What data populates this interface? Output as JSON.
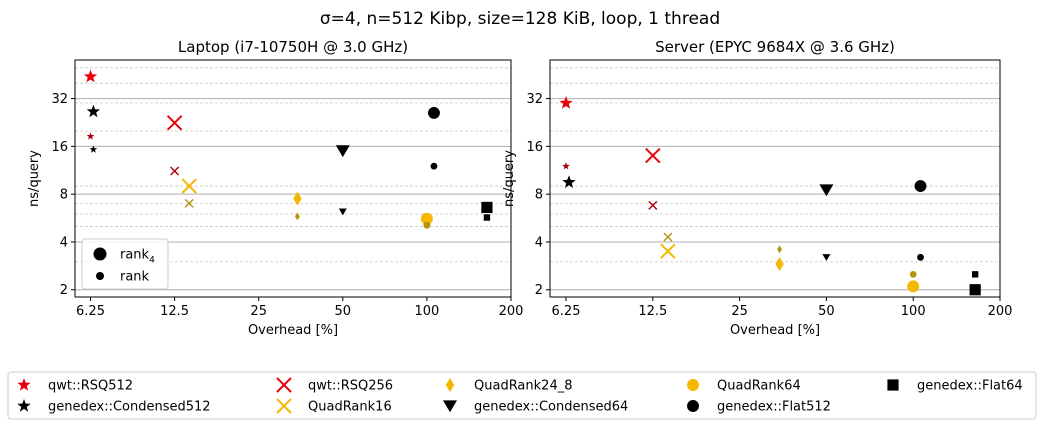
{
  "figure": {
    "suptitle": "σ=4, n=512 Kibp, size=128 KiB, loop, 1 thread"
  },
  "colors": {
    "red": "#e8000b",
    "darkred": "#a5000a",
    "yellow": "#f5b700",
    "darkyellow": "#b8910f",
    "black": "#000000",
    "grid_major": "#b0b0b0",
    "grid_minor": "#c8c8c8"
  },
  "chart_data": [
    {
      "type": "scatter",
      "title": "Laptop (i7-10750H @ 3.0 GHz)",
      "xlabel": "Overhead [%]",
      "ylabel": "ns/query",
      "xscale": "log",
      "yscale": "log",
      "xlim": [
        5.5,
        200
      ],
      "ylim": [
        1.8,
        56
      ],
      "xticks": [
        6.25,
        12.5,
        25,
        50,
        100,
        200
      ],
      "xtick_labels": [
        "6.25",
        "12.5",
        "25",
        "50",
        "100",
        "200"
      ],
      "yticks": [
        2,
        4,
        8,
        16,
        32
      ],
      "ytick_labels": [
        "2",
        "4",
        "8",
        "16",
        "32"
      ],
      "grid": "y major and minor",
      "legend": {
        "placement": "lower-left",
        "entries": [
          {
            "label_main": "rank",
            "label_sub": "4",
            "size": "large"
          },
          {
            "label_main": "rank",
            "label_sub": "",
            "size": "small"
          }
        ]
      },
      "series": [
        {
          "name": "qwt::RSQ512",
          "marker": "star",
          "color": "red",
          "rank4": [
            6.25,
            44
          ],
          "rank": [
            6.25,
            18.5
          ]
        },
        {
          "name": "genedex::Condensed512",
          "marker": "star",
          "color": "black",
          "rank4": [
            6.4,
            26.5
          ],
          "rank": [
            6.4,
            15.3
          ]
        },
        {
          "name": "qwt::RSQ256",
          "marker": "x",
          "color": "red",
          "rank4": [
            12.5,
            22.5
          ],
          "rank": [
            12.5,
            11.2
          ]
        },
        {
          "name": "QuadRank16",
          "marker": "x",
          "color": "yellow",
          "rank4": [
            14.1,
            9.0
          ],
          "rank": [
            14.1,
            7.0
          ]
        },
        {
          "name": "QuadRank24_8",
          "marker": "thin_diamond",
          "color": "yellow",
          "rank4": [
            34.4,
            7.5
          ],
          "rank": [
            34.4,
            5.8
          ]
        },
        {
          "name": "genedex::Condensed64",
          "marker": "triangle-down",
          "color": "black",
          "rank4": [
            50,
            15.0
          ],
          "rank": [
            50,
            6.2
          ]
        },
        {
          "name": "QuadRank64",
          "marker": "circle",
          "color": "yellow",
          "rank4": [
            100,
            5.6
          ],
          "rank": [
            100,
            5.1
          ]
        },
        {
          "name": "genedex::Flat512",
          "marker": "circle",
          "color": "black",
          "rank4": [
            106,
            26.0
          ],
          "rank": [
            106,
            12.0
          ]
        },
        {
          "name": "genedex::Flat64",
          "marker": "square",
          "color": "black",
          "rank4": [
            164,
            6.6
          ],
          "rank": [
            164,
            5.7
          ]
        }
      ]
    },
    {
      "type": "scatter",
      "title": "Server (EPYC 9684X @ 3.6 GHz)",
      "xlabel": "Overhead [%]",
      "ylabel": "ns/query",
      "xscale": "log",
      "yscale": "log",
      "xlim": [
        5.5,
        200
      ],
      "ylim": [
        1.8,
        56
      ],
      "xticks": [
        6.25,
        12.5,
        25,
        50,
        100,
        200
      ],
      "xtick_labels": [
        "6.25",
        "12.5",
        "25",
        "50",
        "100",
        "200"
      ],
      "yticks": [
        2,
        4,
        8,
        16,
        32
      ],
      "ytick_labels": [
        "2",
        "4",
        "8",
        "16",
        "32"
      ],
      "grid": "y major and minor",
      "series": [
        {
          "name": "qwt::RSQ512",
          "marker": "star",
          "color": "red",
          "rank4": [
            6.25,
            30.0
          ],
          "rank": [
            6.25,
            12.0
          ]
        },
        {
          "name": "genedex::Condensed512",
          "marker": "star",
          "color": "black",
          "rank4": [
            6.4,
            9.5
          ],
          "rank": [
            6.4,
            9.5
          ]
        },
        {
          "name": "qwt::RSQ256",
          "marker": "x",
          "color": "red",
          "rank4": [
            12.5,
            14.0
          ],
          "rank": [
            12.5,
            6.8
          ]
        },
        {
          "name": "QuadRank16",
          "marker": "x",
          "color": "yellow",
          "rank4": [
            14.1,
            3.5
          ],
          "rank": [
            14.1,
            4.3
          ]
        },
        {
          "name": "QuadRank24_8",
          "marker": "thin_diamond",
          "color": "yellow",
          "rank4": [
            34.4,
            2.9
          ],
          "rank": [
            34.4,
            3.6
          ]
        },
        {
          "name": "genedex::Condensed64",
          "marker": "triangle-down",
          "color": "black",
          "rank4": [
            50,
            8.5
          ],
          "rank": [
            50,
            3.2
          ]
        },
        {
          "name": "QuadRank64",
          "marker": "circle",
          "color": "yellow",
          "rank4": [
            100,
            2.1
          ],
          "rank": [
            100,
            2.5
          ]
        },
        {
          "name": "genedex::Flat512",
          "marker": "circle",
          "color": "black",
          "rank4": [
            106,
            9.0
          ],
          "rank": [
            106,
            3.2
          ]
        },
        {
          "name": "genedex::Flat64",
          "marker": "square",
          "color": "black",
          "rank4": [
            164,
            2.0
          ],
          "rank": [
            164,
            2.5
          ]
        }
      ]
    }
  ],
  "legend": {
    "placement": "bottom",
    "columns": [
      [
        "qwt::RSQ512",
        "genedex::Condensed512"
      ],
      [
        "qwt::RSQ256",
        "QuadRank16"
      ],
      [
        "QuadRank24_8",
        "genedex::Condensed64"
      ],
      [
        "QuadRank64",
        "genedex::Flat512"
      ],
      [
        "genedex::Flat64"
      ]
    ]
  }
}
